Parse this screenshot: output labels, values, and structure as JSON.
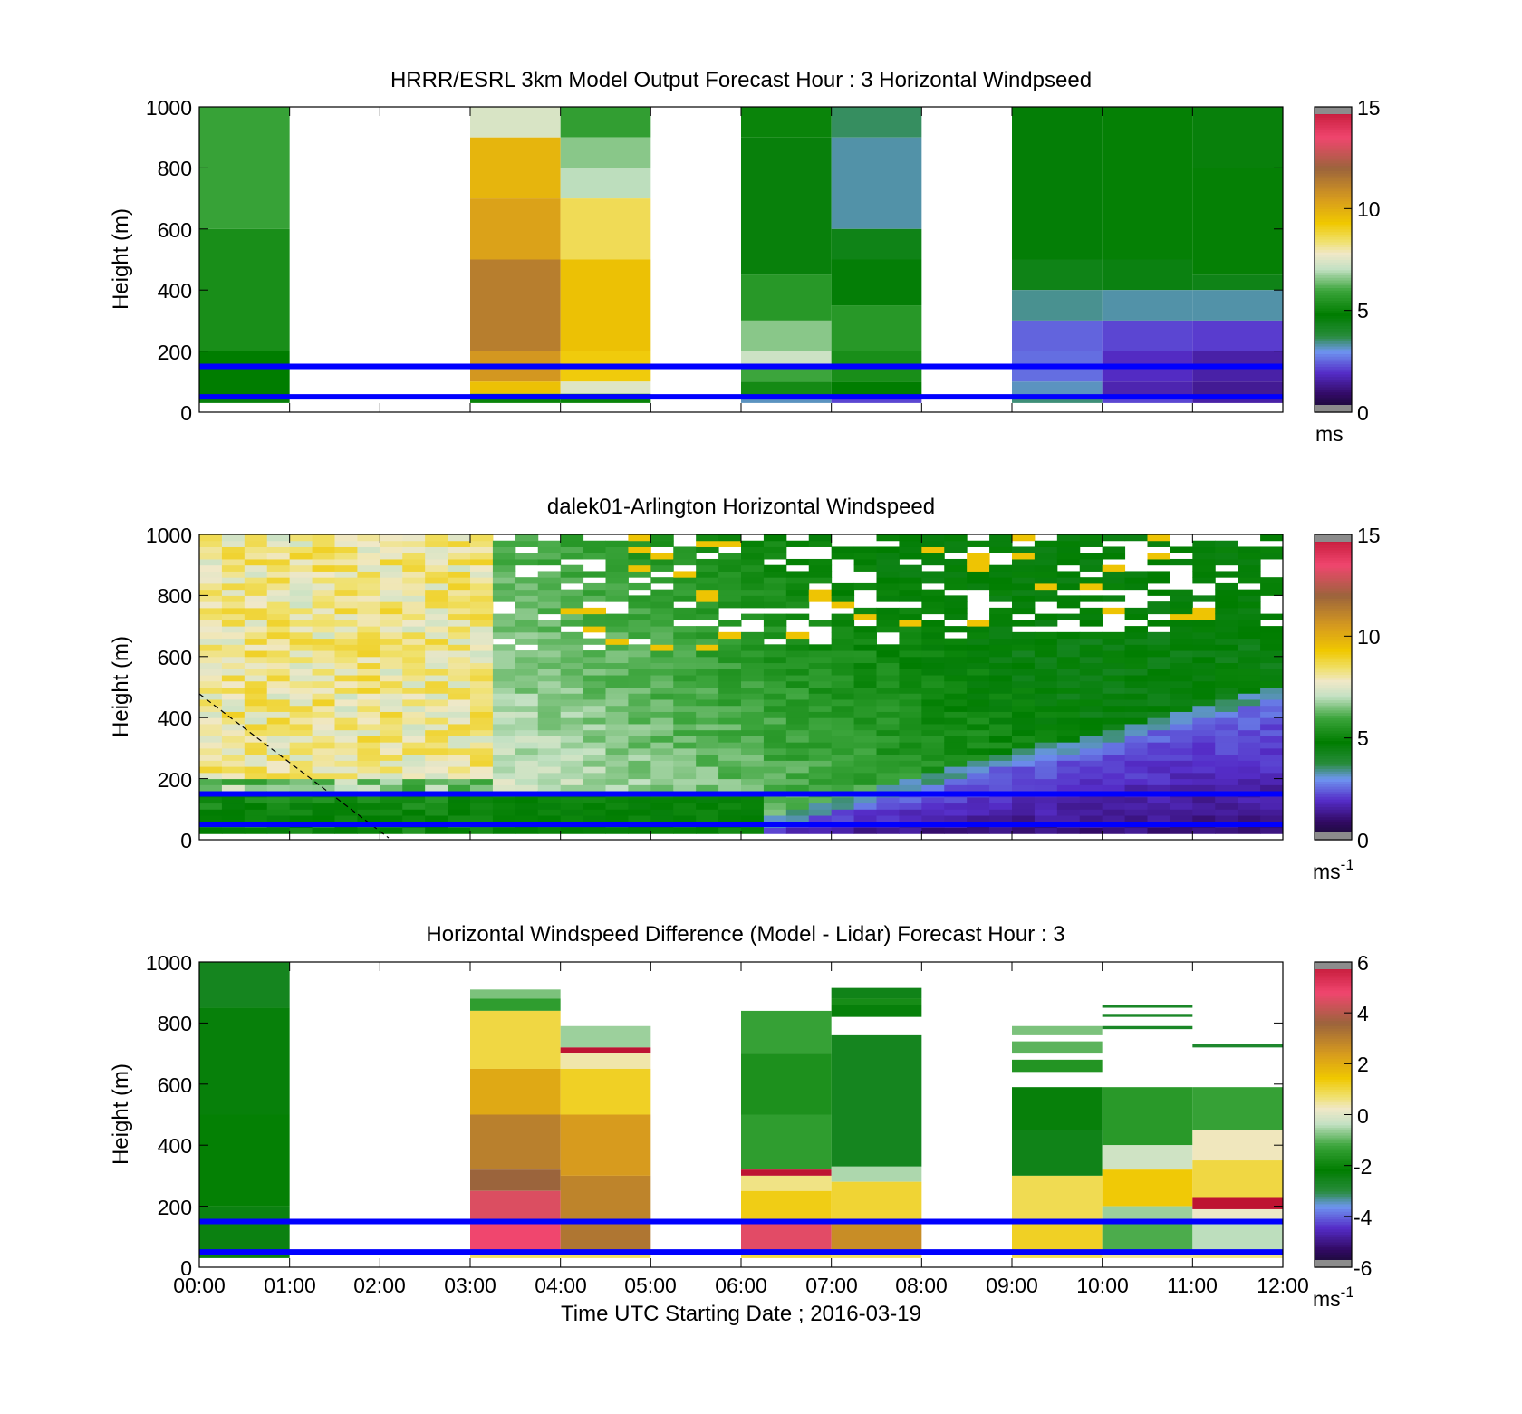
{
  "chart_data": [
    {
      "type": "heatmap",
      "title": "HRRR/ESRL 3km Model Output   Forecast Hour : 3 Horizontal Windpseed",
      "xlabel": "",
      "ylabel": "Height (m)",
      "xlim": [
        "00:00",
        "12:00"
      ],
      "ylim": [
        0,
        1000
      ],
      "yticks": [
        "0",
        "200",
        "400",
        "600",
        "800",
        "1000"
      ],
      "colorbar": {
        "ticks": [
          "0",
          "5",
          "10",
          "15"
        ],
        "range": [
          0,
          15
        ],
        "unit": "ms",
        "unit_sup": ""
      },
      "reference_lines_m": [
        50,
        150
      ],
      "columns": [
        {
          "start": "00:00",
          "end": "01:00",
          "ymax": 1000,
          "cells": [
            [
              1000,
              600,
              5.9
            ],
            [
              600,
              200,
              5.3
            ],
            [
              200,
              50,
              4.8
            ],
            [
              50,
              30,
              4.6
            ]
          ]
        },
        {
          "start": "03:00",
          "end": "04:00",
          "ymax": 1000,
          "cells": [
            [
              1000,
              900,
              7.4
            ],
            [
              900,
              700,
              9.8
            ],
            [
              700,
              500,
              10.3
            ],
            [
              500,
              200,
              11.3
            ],
            [
              200,
              100,
              10.6
            ],
            [
              100,
              60,
              9.5
            ],
            [
              60,
              30,
              5.0
            ]
          ]
        },
        {
          "start": "04:00",
          "end": "05:00",
          "ymax": 1000,
          "cells": [
            [
              1000,
              900,
              5.8
            ],
            [
              900,
              800,
              6.6
            ],
            [
              800,
              700,
              7.0
            ],
            [
              700,
              500,
              8.6
            ],
            [
              500,
              200,
              9.5
            ],
            [
              200,
              100,
              9.2
            ],
            [
              100,
              60,
              7.5
            ],
            [
              60,
              30,
              5.0
            ]
          ]
        },
        {
          "start": "06:00",
          "end": "07:00",
          "ymax": 1000,
          "cells": [
            [
              1000,
              900,
              5.0
            ],
            [
              900,
              450,
              4.6
            ],
            [
              450,
              300,
              5.6
            ],
            [
              300,
              200,
              6.6
            ],
            [
              200,
              150,
              7.2
            ],
            [
              150,
              100,
              6.0
            ],
            [
              100,
              50,
              5.2
            ],
            [
              50,
              30,
              3.2
            ]
          ]
        },
        {
          "start": "07:00",
          "end": "08:00",
          "ymax": 1000,
          "cells": [
            [
              1000,
              900,
              3.6
            ],
            [
              900,
              600,
              3.3
            ],
            [
              600,
              500,
              4.4
            ],
            [
              500,
              350,
              4.7
            ],
            [
              350,
              200,
              5.6
            ],
            [
              200,
              100,
              5.3
            ],
            [
              100,
              50,
              4.8
            ],
            [
              50,
              30,
              2.2
            ]
          ]
        },
        {
          "start": "09:00",
          "end": "10:00",
          "ymax": 1000,
          "cells": [
            [
              1000,
              500,
              4.7
            ],
            [
              500,
              400,
              4.4
            ],
            [
              400,
              300,
              3.4
            ],
            [
              300,
              200,
              2.5
            ],
            [
              200,
              100,
              2.6
            ],
            [
              100,
              50,
              3.2
            ],
            [
              50,
              30,
              3.5
            ]
          ]
        },
        {
          "start": "10:00",
          "end": "11:00",
          "ymax": 1000,
          "cells": [
            [
              1000,
              500,
              4.9
            ],
            [
              500,
              400,
              4.5
            ],
            [
              400,
              300,
              3.3
            ],
            [
              300,
              200,
              2.2
            ],
            [
              200,
              100,
              1.9
            ],
            [
              100,
              50,
              1.7
            ],
            [
              50,
              30,
              2.2
            ]
          ]
        },
        {
          "start": "11:00",
          "end": "12:00",
          "ymax": 1000,
          "cells": [
            [
              1000,
              800,
              4.6
            ],
            [
              800,
              450,
              4.9
            ],
            [
              450,
              400,
              4.4
            ],
            [
              400,
              300,
              3.3
            ],
            [
              300,
              200,
              2.1
            ],
            [
              200,
              100,
              1.6
            ],
            [
              100,
              50,
              1.4
            ],
            [
              50,
              30,
              1.6
            ]
          ]
        }
      ]
    },
    {
      "type": "heatmap",
      "title": "dalek01-Arlington  Horizontal Windspeed",
      "xlabel": "",
      "ylabel": "Height (m)",
      "xlim": [
        "00:00",
        "12:00"
      ],
      "ylim": [
        0,
        1000
      ],
      "yticks": [
        "0",
        "200",
        "400",
        "600",
        "800",
        "1000"
      ],
      "colorbar": {
        "ticks": [
          "0",
          "5",
          "10",
          "15"
        ],
        "range": [
          0,
          15
        ],
        "unit": "ms",
        "unit_sup": "-1"
      },
      "reference_lines_m": [
        50,
        150
      ],
      "profiles": {
        "interval_minutes": 15,
        "from": "00:00",
        "to": "12:00"
      }
    },
    {
      "type": "heatmap",
      "title": "Horizontal Windspeed Difference (Model - Lidar) Forecast Hour : 3",
      "xlabel": "Time UTC  Starting Date ; 2016-03-19",
      "ylabel": "Height (m)",
      "xlim": [
        "00:00",
        "12:00"
      ],
      "xticks": [
        "00:00",
        "01:00",
        "02:00",
        "03:00",
        "04:00",
        "05:00",
        "06:00",
        "07:00",
        "08:00",
        "09:00",
        "10:00",
        "11:00",
        "12:00"
      ],
      "ylim": [
        0,
        1000
      ],
      "yticks": [
        "0",
        "200",
        "400",
        "600",
        "800",
        "1000"
      ],
      "colorbar": {
        "ticks": [
          "-6",
          "-4",
          "-2",
          "0",
          "2",
          "4",
          "6"
        ],
        "range": [
          -6,
          6
        ],
        "unit": "ms",
        "unit_sup": "-1"
      },
      "reference_lines_m": [
        50,
        150
      ],
      "columns": [
        {
          "start": "00:00",
          "end": "01:00",
          "ymax": 1000,
          "cells": [
            [
              1000,
              850,
              -2.6
            ],
            [
              850,
              500,
              -2.3
            ],
            [
              500,
              200,
              -2.1
            ],
            [
              200,
              30,
              -2.4
            ]
          ]
        },
        {
          "start": "03:00",
          "end": "04:00",
          "ymax": 910,
          "cells": [
            [
              910,
              880,
              -0.8
            ],
            [
              880,
              840,
              -1.4
            ],
            [
              840,
              650,
              1.0
            ],
            [
              650,
              500,
              2.1
            ],
            [
              500,
              320,
              3.0
            ],
            [
              320,
              250,
              3.6
            ],
            [
              250,
              150,
              4.5
            ],
            [
              150,
              50,
              4.8
            ],
            [
              50,
              30,
              0.8
            ]
          ]
        },
        {
          "start": "04:00",
          "end": "05:00",
          "ymax": 790,
          "cells": [
            [
              790,
              720,
              -0.6
            ],
            [
              720,
              700,
              6.2
            ],
            [
              700,
              650,
              0.4
            ],
            [
              650,
              500,
              1.2
            ],
            [
              500,
              300,
              2.4
            ],
            [
              300,
              150,
              2.9
            ],
            [
              150,
              50,
              3.2
            ],
            [
              50,
              30,
              0.8
            ]
          ]
        },
        {
          "start": "06:00",
          "end": "07:00",
          "ymax": 840,
          "cells": [
            [
              840,
              700,
              -1.3
            ],
            [
              700,
              500,
              -1.7
            ],
            [
              500,
              320,
              -1.4
            ],
            [
              320,
              300,
              6.2
            ],
            [
              300,
              250,
              0.6
            ],
            [
              250,
              150,
              1.3
            ],
            [
              150,
              50,
              4.6
            ],
            [
              50,
              30,
              1.0
            ]
          ]
        },
        {
          "start": "07:00",
          "end": "08:00",
          "ymax": 915,
          "cells": [
            [
              915,
              880,
              -2.5
            ],
            [
              880,
              860,
              -1.8
            ],
            [
              860,
              820,
              -2.3
            ],
            [
              760,
              330,
              -2.6
            ],
            [
              330,
              280,
              -0.5
            ],
            [
              280,
              150,
              1.1
            ],
            [
              150,
              50,
              2.7
            ],
            [
              50,
              30,
              0.8
            ]
          ]
        },
        {
          "start": "09:00",
          "end": "10:00",
          "ymax": 790,
          "cells": [
            [
              790,
              760,
              -0.8
            ],
            [
              740,
              700,
              -1.0
            ],
            [
              680,
              640,
              -1.6
            ],
            [
              590,
              450,
              -2.3
            ],
            [
              450,
              300,
              -2.5
            ],
            [
              300,
              150,
              0.9
            ],
            [
              150,
              50,
              1.2
            ],
            [
              50,
              30,
              0.9
            ]
          ]
        },
        {
          "start": "10:00",
          "end": "11:00",
          "ymax": 860,
          "cells": [
            [
              860,
              850,
              -2.7
            ],
            [
              830,
              820,
              -2.7
            ],
            [
              790,
              780,
              -2.7
            ],
            [
              590,
              400,
              -1.5
            ],
            [
              400,
              320,
              -0.2
            ],
            [
              320,
              200,
              1.4
            ],
            [
              200,
              150,
              -0.6
            ],
            [
              150,
              50,
              -1.1
            ],
            [
              50,
              30,
              0.5
            ]
          ]
        },
        {
          "start": "11:00",
          "end": "12:00",
          "ymax": 730,
          "cells": [
            [
              730,
              720,
              -2.8
            ],
            [
              590,
              450,
              -1.3
            ],
            [
              450,
              350,
              0.3
            ],
            [
              350,
              230,
              1.0
            ],
            [
              230,
              190,
              6.2
            ],
            [
              190,
              150,
              0.2
            ],
            [
              150,
              50,
              -0.4
            ],
            [
              50,
              30,
              0.6
            ]
          ]
        }
      ]
    }
  ]
}
